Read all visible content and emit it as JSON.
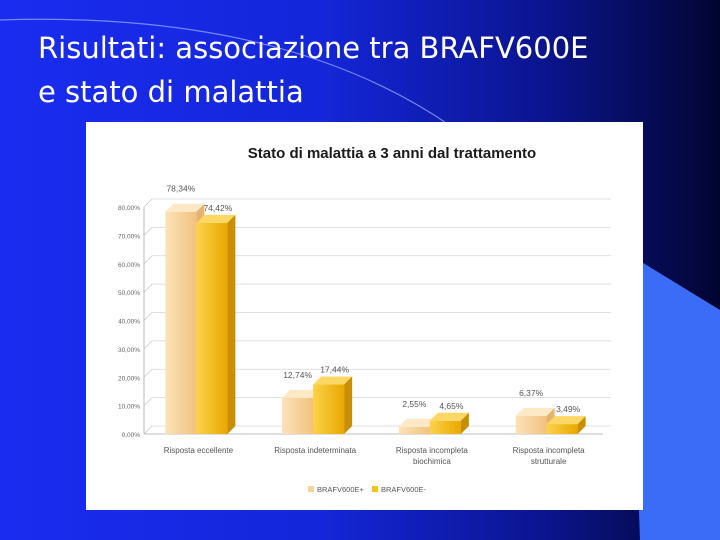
{
  "slide": {
    "title_line1": "Risultati: associazione tra BRAFV600E",
    "title_line2": "e stato di malattia",
    "colors": {
      "background": "#1426d8",
      "accent_shape": "#3a6cf8",
      "title_text": "#ffffff"
    }
  },
  "chart_data": {
    "type": "bar",
    "title": "Stato di malattia a 3 anni dal trattamento",
    "categories": [
      [
        "Risposta eccellente"
      ],
      [
        "Risposta indeterminata"
      ],
      [
        "Risposta incompleta",
        "biochimica"
      ],
      [
        "Risposta incompleta",
        "strutturale"
      ]
    ],
    "series": [
      {
        "name": "BRAFV600E+",
        "values": [
          78.34,
          12.74,
          2.55,
          6.37
        ],
        "labels": [
          "78,34%",
          "12,74%",
          "2,55%",
          "6,37%"
        ],
        "color": "#f9d49a"
      },
      {
        "name": "BRAFV600E-",
        "values": [
          74.42,
          17.44,
          4.65,
          3.49
        ],
        "labels": [
          "74,42%",
          "17,44%",
          "4,65%",
          "3,49%"
        ],
        "color": "#f7c21a"
      }
    ],
    "yticks": [
      "0,00%",
      "10,00%",
      "20,00%",
      "30,00%",
      "40,00%",
      "50,00%",
      "60,00%",
      "70,00%",
      "80,00%"
    ],
    "ylim": [
      0,
      80
    ],
    "grid": true,
    "legend_position": "bottom"
  }
}
